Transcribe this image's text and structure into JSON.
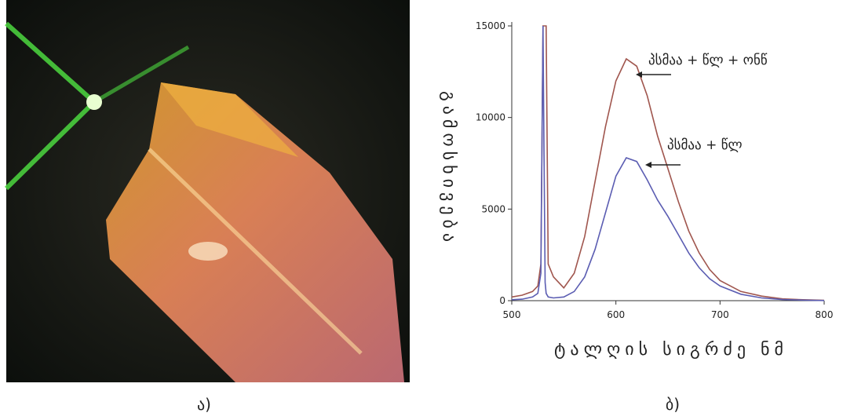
{
  "panel_labels": [
    "ა)",
    "ბ)"
  ],
  "chart_data": {
    "type": "line",
    "xlabel": "ტალღის სიგრძე ნმ",
    "ylabel": "გამოსხივება",
    "annotations": [
      "პსმაა + წლ + ონწ",
      "პსმაა + წლ"
    ],
    "x": [
      500,
      510,
      520,
      525,
      528,
      530,
      531,
      532,
      533,
      535,
      540,
      550,
      560,
      570,
      580,
      590,
      600,
      610,
      620,
      630,
      640,
      650,
      660,
      670,
      680,
      690,
      700,
      720,
      740,
      760,
      780,
      800
    ],
    "series": [
      {
        "color": "#a0564e",
        "values": [
          200,
          300,
          500,
          800,
          2000,
          15000,
          15000,
          15000,
          15000,
          2000,
          1300,
          700,
          1500,
          3500,
          6500,
          9500,
          12000,
          13200,
          12800,
          11200,
          9000,
          7200,
          5400,
          3800,
          2600,
          1700,
          1100,
          500,
          250,
          100,
          50,
          20
        ]
      },
      {
        "color": "#5b5db2",
        "values": [
          50,
          80,
          200,
          400,
          1500,
          15000,
          8000,
          1000,
          400,
          200,
          150,
          200,
          500,
          1300,
          2800,
          4800,
          6800,
          7800,
          7600,
          6600,
          5500,
          4600,
          3600,
          2600,
          1800,
          1200,
          800,
          350,
          150,
          60,
          30,
          10
        ]
      }
    ],
    "xlim": [
      500,
      800
    ],
    "xticks": [
      500,
      600,
      700,
      800
    ],
    "ylim": [
      0,
      15000
    ],
    "yticks": [
      0,
      5000,
      10000,
      15000
    ],
    "grid": false
  }
}
